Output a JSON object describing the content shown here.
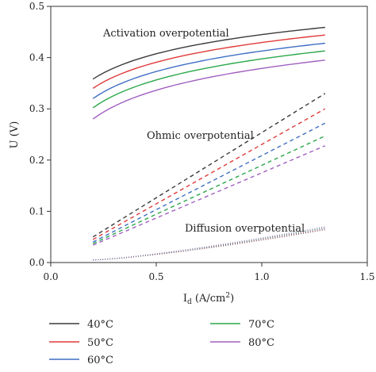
{
  "chart_data": {
    "type": "line",
    "xlabel_main": "I",
    "xlabel_sub": "d",
    "xlabel_unit": " (A/cm",
    "xlabel_sup": "2",
    "xlabel_close": ")",
    "ylabel": "U (V)",
    "xlim": [
      0.0,
      1.5
    ],
    "ylim": [
      0.0,
      0.5
    ],
    "x_ticks": [
      "0.0",
      "0.5",
      "1.0",
      "1.5"
    ],
    "y_ticks": [
      "0.0",
      "0.1",
      "0.2",
      "0.3",
      "0.4",
      "0.5"
    ],
    "x_tick_values": [
      0.0,
      0.5,
      1.0,
      1.5
    ],
    "y_tick_values": [
      0.0,
      0.1,
      0.2,
      0.3,
      0.4,
      0.5
    ],
    "grid": false,
    "legend_position": "bottom",
    "annotations": {
      "activation": "Activation overpotential",
      "ohmic": "Ohmic overpotential",
      "diffusion": "Diffusion overpotential"
    },
    "x_range": [
      0.2,
      1.3
    ],
    "series": [
      {
        "name": "40°C",
        "color": "#3a3a3a",
        "activation": [
          0.358,
          0.459
        ],
        "ohmic": [
          0.05,
          0.33
        ]
      },
      {
        "name": "50°C",
        "color": "#e03a3a",
        "activation": [
          0.34,
          0.444
        ],
        "ohmic": [
          0.045,
          0.3
        ]
      },
      {
        "name": "60°C",
        "color": "#3f6fc4",
        "activation": [
          0.32,
          0.428
        ],
        "ohmic": [
          0.04,
          0.272
        ]
      },
      {
        "name": "70°C",
        "color": "#2aa84a",
        "activation": [
          0.302,
          0.413
        ],
        "ohmic": [
          0.037,
          0.247
        ]
      },
      {
        "name": "80°C",
        "color": "#a060c0",
        "activation": [
          0.28,
          0.395
        ],
        "ohmic": [
          0.034,
          0.228
        ]
      }
    ],
    "diffusion": [
      0.005,
      0.067
    ]
  }
}
